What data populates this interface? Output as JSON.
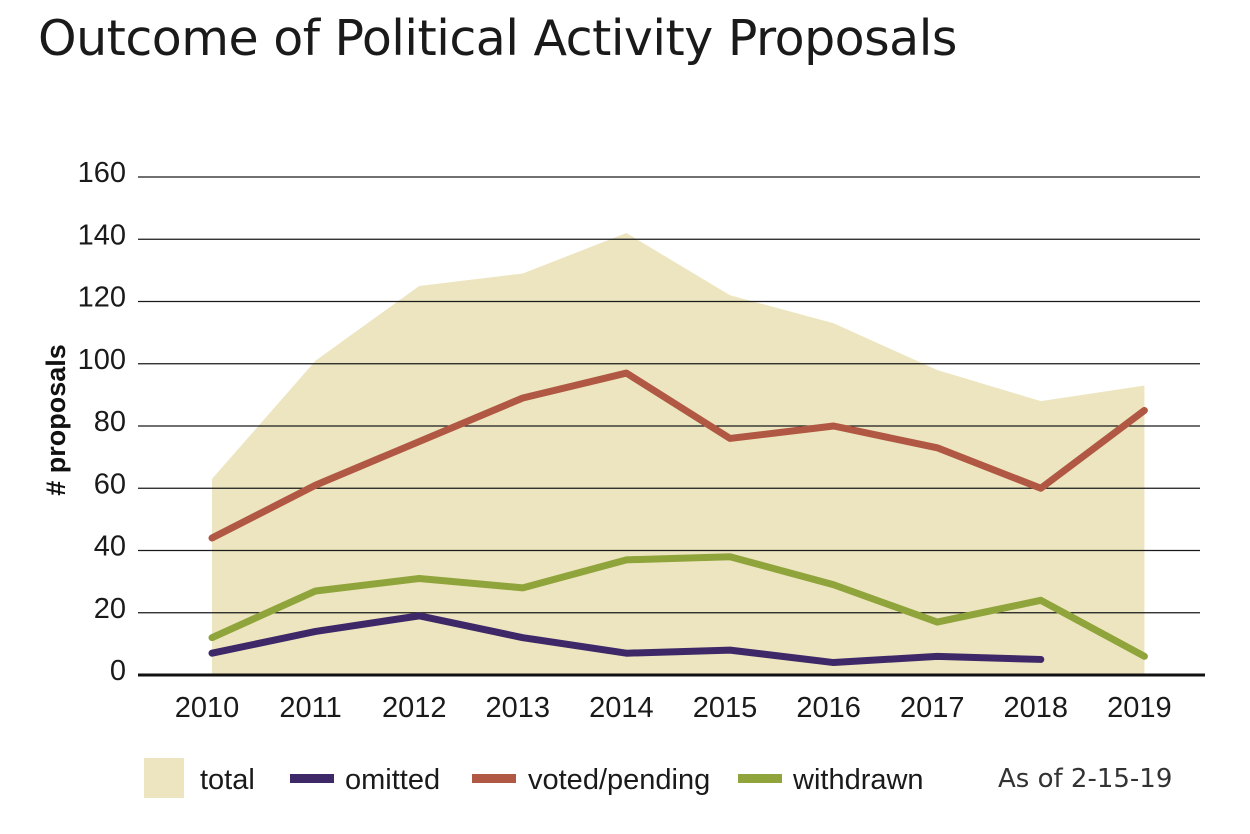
{
  "title": "Outcome of Political Activity Proposals",
  "note": "As of 2-15-19",
  "chart_data": {
    "type": "line",
    "title": "Outcome of Political Activity Proposals",
    "xlabel": "",
    "ylabel": "# proposals",
    "categories": [
      "2010",
      "2011",
      "2012",
      "2013",
      "2014",
      "2015",
      "2016",
      "2017",
      "2018",
      "2019"
    ],
    "y_ticks": [
      0,
      20,
      40,
      60,
      80,
      100,
      120,
      140,
      160
    ],
    "ylim": [
      0,
      160
    ],
    "grid": true,
    "legend_position": "bottom",
    "series": [
      {
        "name": "total",
        "kind": "area",
        "color": "#ede5bf",
        "values": [
          63,
          101,
          125,
          129,
          142,
          122,
          113,
          98,
          88,
          93
        ]
      },
      {
        "name": "omitted",
        "kind": "line",
        "color": "#3f2868",
        "values": [
          7,
          14,
          19,
          12,
          7,
          8,
          4,
          6,
          5,
          null
        ]
      },
      {
        "name": "voted/pending",
        "kind": "line",
        "color": "#b05843",
        "values": [
          44,
          61,
          75,
          89,
          97,
          76,
          80,
          73,
          60,
          85
        ]
      },
      {
        "name": "withdrawn",
        "kind": "line",
        "color": "#8fa43a",
        "values": [
          12,
          27,
          31,
          28,
          37,
          38,
          29,
          17,
          24,
          6
        ]
      }
    ]
  }
}
